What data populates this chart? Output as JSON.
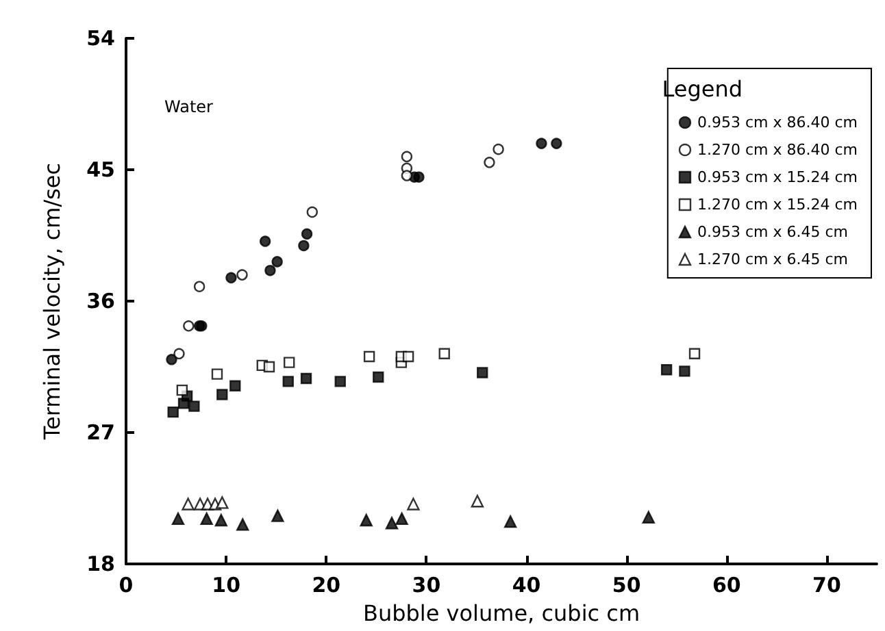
{
  "chart_data": {
    "type": "scatter",
    "xlabel": "Bubble volume, cubic cm",
    "ylabel": "Terminal velocity, cm/sec",
    "legend_title": "Legend",
    "annotations": [
      "Water"
    ],
    "xlim": [
      0,
      75
    ],
    "xticks": [
      0,
      10,
      20,
      30,
      40,
      50,
      60,
      70
    ],
    "ylim": [
      18,
      54
    ],
    "yticks": [
      18,
      27,
      36,
      45,
      54
    ],
    "grid": false,
    "legend": "top right",
    "series": [
      {
        "name": "0.953 cm x 86.40 cm",
        "color": "#000000",
        "marker": "circle",
        "x": [
          4.55,
          7.33,
          7.55,
          10.5,
          13.9,
          14.4,
          15.1,
          17.75,
          18.07,
          28.8,
          29.25,
          41.5,
          43.0
        ],
        "values": [
          32.0,
          34.3,
          34.3,
          37.6,
          40.1,
          38.1,
          38.7,
          39.8,
          40.6,
          44.5,
          44.5,
          46.8,
          46.8
        ]
      },
      {
        "name": "1.270 cm x 86.40 cm",
        "color": "#000000",
        "marker": "circle",
        "x": [
          5.3,
          6.25,
          7.33,
          11.6,
          18.6,
          28.05,
          28.05,
          28.05,
          36.3,
          37.2
        ],
        "values": [
          32.4,
          34.3,
          37.0,
          37.8,
          42.1,
          45.9,
          45.1,
          44.6,
          45.5,
          46.4
        ]
      },
      {
        "name": "0.953 cm x 15.24 cm",
        "color": "#000000",
        "marker": "square",
        "x": [
          4.7,
          5.75,
          6.1,
          6.8,
          9.6,
          10.9,
          16.2,
          18.0,
          21.4,
          25.2,
          35.6,
          54.0,
          55.8
        ],
        "values": [
          28.4,
          29.0,
          29.5,
          28.8,
          29.6,
          30.2,
          30.5,
          30.7,
          30.5,
          30.8,
          31.1,
          31.3,
          31.2
        ]
      },
      {
        "name": "1.270 cm x 15.24 cm",
        "color": "#000000",
        "marker": "square",
        "x": [
          5.6,
          9.1,
          13.6,
          14.3,
          16.3,
          24.3,
          27.5,
          27.5,
          28.2,
          31.8,
          56.8
        ],
        "values": [
          29.9,
          31.0,
          31.6,
          31.5,
          31.8,
          32.2,
          31.8,
          32.2,
          32.2,
          32.4,
          32.4
        ]
      },
      {
        "name": "0.953 cm x 6.45 cm",
        "color": "#000000",
        "marker": "triangle",
        "x": [
          5.2,
          8.05,
          9.5,
          11.65,
          15.15,
          24.0,
          26.55,
          27.55,
          38.4,
          52.2
        ],
        "values": [
          21.1,
          21.1,
          21.0,
          20.7,
          21.3,
          21.0,
          20.8,
          21.1,
          20.9,
          21.2
        ]
      },
      {
        "name": "1.270 cm x 6.45 cm",
        "color": "#000000",
        "marker": "triangle",
        "x": [
          6.2,
          7.4,
          8.15,
          8.9,
          9.6,
          28.7,
          35.1
        ],
        "values": [
          22.1,
          22.1,
          22.1,
          22.1,
          22.2,
          22.1,
          22.3
        ]
      }
    ]
  }
}
